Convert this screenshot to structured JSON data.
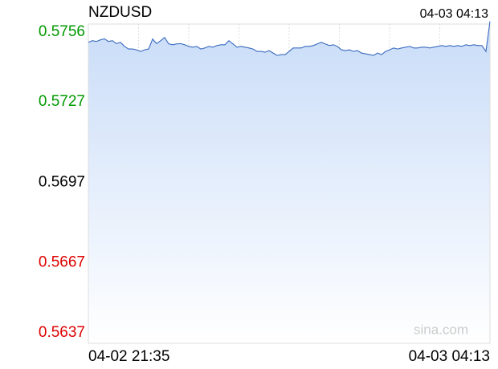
{
  "chart_data": {
    "type": "line",
    "title": "NZDUSD",
    "timestamp": "04-03 04:13",
    "watermark": "sina.com",
    "categories": [
      "04-02 21:35",
      null,
      null,
      null,
      null,
      null,
      null,
      null,
      null,
      null,
      null,
      null,
      null,
      null,
      null,
      null,
      null,
      null,
      null,
      null,
      null,
      null,
      null,
      null,
      null,
      null,
      null,
      null,
      null,
      null,
      null,
      null,
      null,
      null,
      null,
      null,
      null,
      null,
      null,
      null,
      null,
      null,
      null,
      null,
      null,
      null,
      null,
      null,
      null,
      null,
      null,
      null,
      null,
      null,
      null,
      null,
      null,
      null,
      null,
      null,
      null,
      null,
      null,
      null,
      null,
      null,
      null,
      null,
      null,
      null,
      null,
      null,
      null,
      null,
      null,
      null,
      null,
      null,
      null,
      null,
      null,
      null,
      null,
      null,
      null,
      null,
      null,
      null,
      null,
      null,
      null,
      null,
      null,
      null,
      null,
      null,
      null,
      null,
      null,
      null,
      "04-03 04:13"
    ],
    "values": [
      0.57492,
      0.57498,
      0.57495,
      0.57501,
      0.57505,
      0.57495,
      0.57498,
      0.57487,
      0.57492,
      0.57477,
      0.57467,
      0.57467,
      0.57464,
      0.57458,
      0.57464,
      0.57467,
      0.57504,
      0.57487,
      0.57498,
      0.5751,
      0.57486,
      0.57483,
      0.57486,
      0.57487,
      0.57483,
      0.57477,
      0.57474,
      0.57477,
      0.57467,
      0.57471,
      0.57477,
      0.57474,
      0.5748,
      0.57483,
      0.57483,
      0.57498,
      0.57486,
      0.57474,
      0.57477,
      0.57474,
      0.57471,
      0.57467,
      0.57458,
      0.57458,
      0.57455,
      0.57461,
      0.57452,
      0.57443,
      0.57446,
      0.57446,
      0.57458,
      0.57471,
      0.57471,
      0.57471,
      0.57477,
      0.57477,
      0.5748,
      0.57486,
      0.57492,
      0.57486,
      0.5748,
      0.57483,
      0.57477,
      0.57464,
      0.57461,
      0.57464,
      0.57458,
      0.57461,
      0.57452,
      0.57449,
      0.57446,
      0.57443,
      0.57452,
      0.57446,
      0.57458,
      0.57464,
      0.57471,
      0.57467,
      0.57471,
      0.57474,
      0.57477,
      0.57471,
      0.57471,
      0.57474,
      0.57474,
      0.57471,
      0.57474,
      0.57477,
      0.5748,
      0.57477,
      0.5748,
      0.57477,
      0.5748,
      0.57477,
      0.57483,
      0.5748,
      0.57483,
      0.5748,
      0.5748,
      0.57458,
      0.5757
    ],
    "color": "#3a6bbf",
    "ylim": [
      0.5637,
      0.5756
    ],
    "yticks": [
      0.5756,
      0.5727,
      0.5697,
      0.5667,
      0.5637
    ],
    "ytick_colors": [
      "#009900",
      "#009900",
      "#000000",
      "#dd0000",
      "#dd0000"
    ],
    "grid": true
  }
}
